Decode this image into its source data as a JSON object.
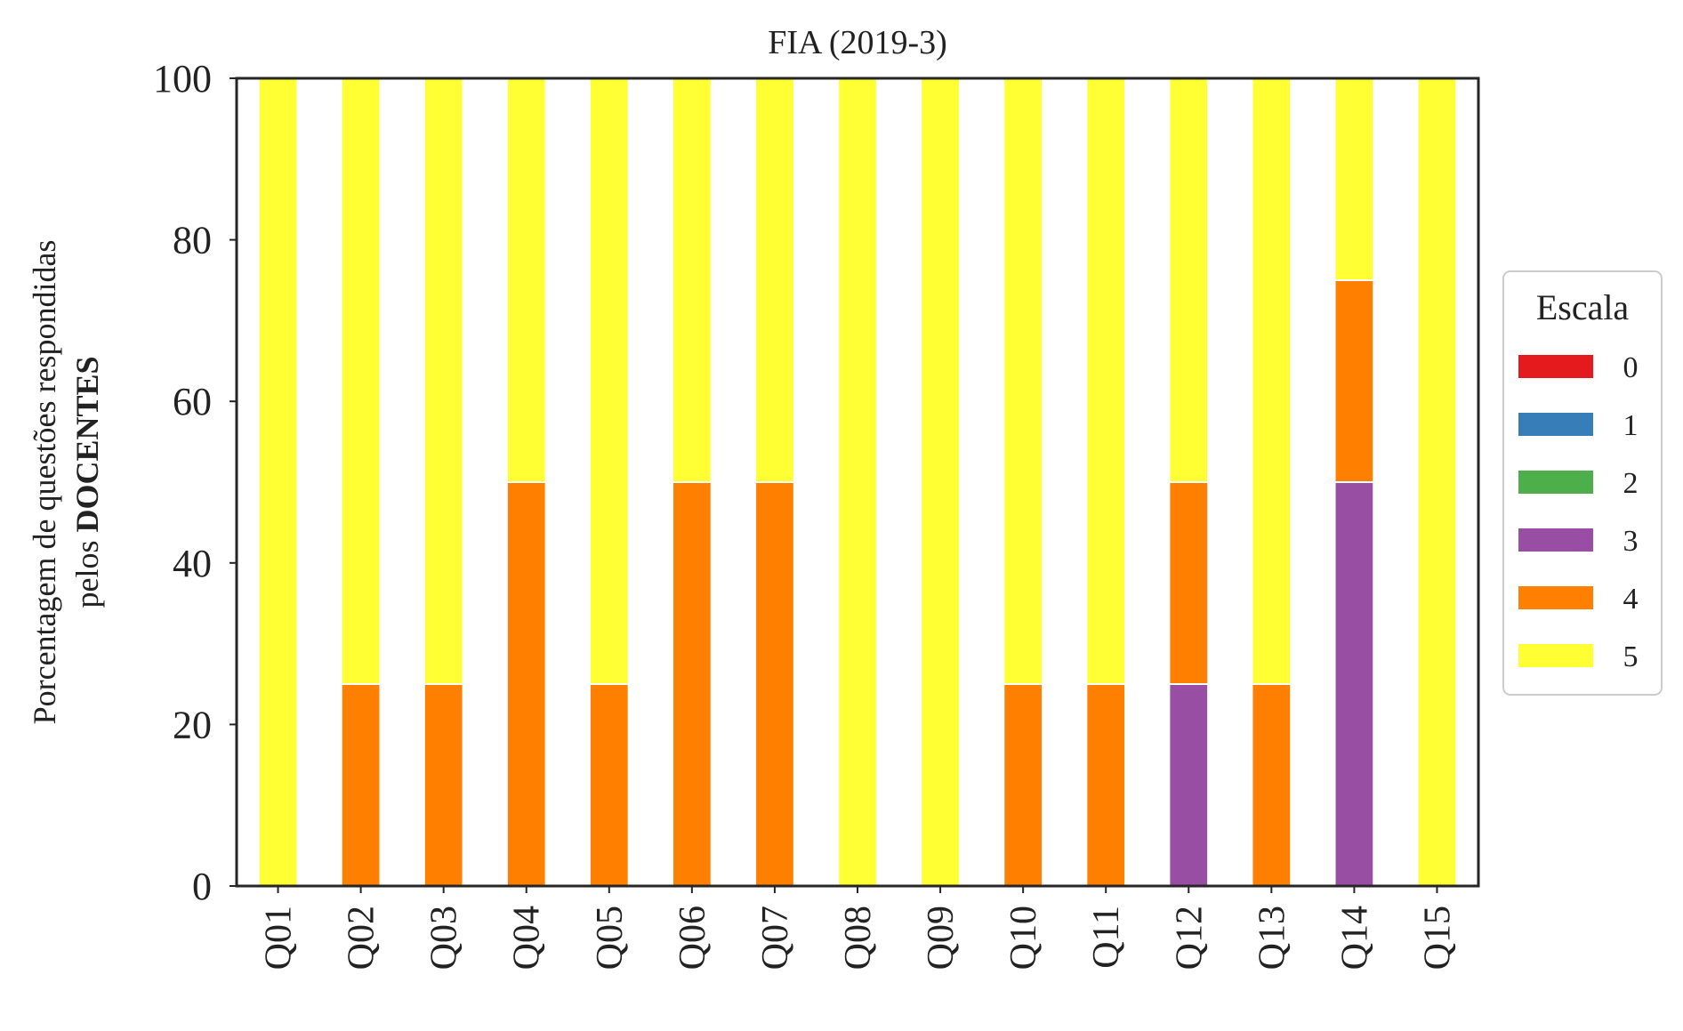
{
  "chart_data": {
    "type": "bar",
    "stacked": true,
    "title": "FIA (2019-3)",
    "ylabel_line1": "Porcentagem de questões respondidas",
    "ylabel_line2_prefix": "pelos ",
    "ylabel_line2_bold": "DOCENTES",
    "xlabel": "",
    "ylim": [
      0,
      100
    ],
    "yticks": [
      "0",
      "20",
      "40",
      "60",
      "80",
      "100"
    ],
    "ytick_values": [
      0,
      20,
      40,
      60,
      80,
      100
    ],
    "grid": false,
    "legend_title": "Escala",
    "legend_placement": "right",
    "categories": [
      "Q01",
      "Q02",
      "Q03",
      "Q04",
      "Q05",
      "Q06",
      "Q07",
      "Q08",
      "Q09",
      "Q10",
      "Q11",
      "Q12",
      "Q13",
      "Q14",
      "Q15"
    ],
    "series": [
      {
        "name": "0",
        "color": "#e41a1c",
        "values": [
          0,
          0,
          0,
          0,
          0,
          0,
          0,
          0,
          0,
          0,
          0,
          0,
          0,
          0,
          0
        ]
      },
      {
        "name": "1",
        "color": "#377eb8",
        "values": [
          0,
          0,
          0,
          0,
          0,
          0,
          0,
          0,
          0,
          0,
          0,
          0,
          0,
          0,
          0
        ]
      },
      {
        "name": "2",
        "color": "#4daf4a",
        "values": [
          0,
          0,
          0,
          0,
          0,
          0,
          0,
          0,
          0,
          0,
          0,
          0,
          0,
          0,
          0
        ]
      },
      {
        "name": "3",
        "color": "#984ea3",
        "values": [
          0,
          0,
          0,
          0,
          0,
          0,
          0,
          0,
          0,
          0,
          0,
          25,
          0,
          50,
          0
        ]
      },
      {
        "name": "4",
        "color": "#ff7f00",
        "values": [
          0,
          25,
          25,
          50,
          25,
          50,
          50,
          0,
          0,
          25,
          25,
          25,
          25,
          25,
          0
        ]
      },
      {
        "name": "5",
        "color": "#ffff33",
        "values": [
          100,
          75,
          75,
          50,
          75,
          50,
          50,
          100,
          100,
          75,
          75,
          50,
          75,
          25,
          100
        ]
      }
    ]
  }
}
